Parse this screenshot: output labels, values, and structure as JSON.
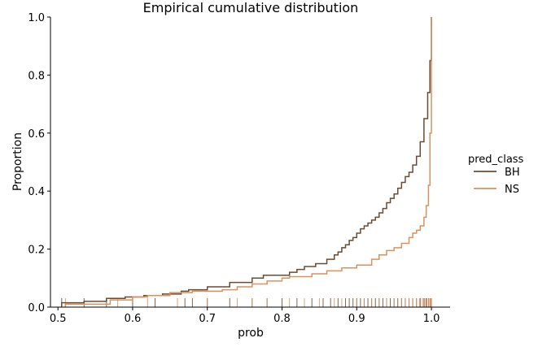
{
  "chart_data": {
    "type": "line",
    "title": "Empirical cumulative distribution",
    "xlabel": "prob",
    "ylabel": "Proportion",
    "xlim": [
      0.49,
      1.025
    ],
    "ylim": [
      0,
      1.0
    ],
    "xticks": [
      0.5,
      0.6,
      0.7,
      0.8,
      0.9,
      1.0
    ],
    "xtick_labels": [
      "0.5",
      "0.6",
      "0.7",
      "0.8",
      "0.9",
      "1.0"
    ],
    "yticks": [
      0.0,
      0.2,
      0.4,
      0.6,
      0.8,
      1.0
    ],
    "ytick_labels": [
      "0.0",
      "0.2",
      "0.4",
      "0.6",
      "0.8",
      "1.0"
    ],
    "grid": false,
    "legend": {
      "title": "pred_class",
      "placement": "center-right"
    },
    "series": [
      {
        "name": "BH",
        "color": "#6b4b32",
        "x": [
          0.505,
          0.535,
          0.565,
          0.59,
          0.615,
          0.64,
          0.665,
          0.675,
          0.7,
          0.73,
          0.76,
          0.775,
          0.8,
          0.81,
          0.82,
          0.83,
          0.845,
          0.86,
          0.87,
          0.875,
          0.88,
          0.885,
          0.89,
          0.895,
          0.9,
          0.905,
          0.91,
          0.915,
          0.92,
          0.925,
          0.93,
          0.935,
          0.94,
          0.945,
          0.95,
          0.955,
          0.96,
          0.965,
          0.97,
          0.975,
          0.98,
          0.985,
          0.99,
          0.995,
          0.998,
          1.0
        ],
        "y": [
          0.015,
          0.02,
          0.03,
          0.035,
          0.04,
          0.045,
          0.055,
          0.06,
          0.07,
          0.085,
          0.1,
          0.11,
          0.11,
          0.12,
          0.13,
          0.14,
          0.15,
          0.165,
          0.18,
          0.19,
          0.205,
          0.215,
          0.23,
          0.24,
          0.255,
          0.27,
          0.28,
          0.29,
          0.3,
          0.31,
          0.325,
          0.34,
          0.36,
          0.375,
          0.39,
          0.41,
          0.43,
          0.45,
          0.465,
          0.49,
          0.52,
          0.57,
          0.65,
          0.74,
          0.85,
          1.0
        ]
      },
      {
        "name": "NS",
        "color": "#d9925e",
        "x": [
          0.51,
          0.57,
          0.6,
          0.62,
          0.65,
          0.68,
          0.72,
          0.74,
          0.76,
          0.78,
          0.8,
          0.81,
          0.84,
          0.86,
          0.88,
          0.9,
          0.92,
          0.93,
          0.94,
          0.95,
          0.96,
          0.97,
          0.975,
          0.98,
          0.985,
          0.99,
          0.993,
          0.996,
          0.998,
          1.0
        ],
        "y": [
          0.01,
          0.025,
          0.035,
          0.04,
          0.05,
          0.055,
          0.06,
          0.07,
          0.08,
          0.09,
          0.1,
          0.105,
          0.115,
          0.125,
          0.135,
          0.145,
          0.165,
          0.18,
          0.195,
          0.205,
          0.22,
          0.24,
          0.255,
          0.265,
          0.28,
          0.31,
          0.35,
          0.42,
          0.6,
          1.0
        ]
      }
    ],
    "rug": {
      "BH": [
        0.505,
        0.535,
        0.565,
        0.6,
        0.63,
        0.67,
        0.68,
        0.7,
        0.73,
        0.76,
        0.78,
        0.8,
        0.82,
        0.84,
        0.855,
        0.865,
        0.875,
        0.885,
        0.89,
        0.895,
        0.9,
        0.905,
        0.91,
        0.915,
        0.92,
        0.925,
        0.93,
        0.935,
        0.94,
        0.945,
        0.95,
        0.955,
        0.96,
        0.965,
        0.97,
        0.975,
        0.98,
        0.985,
        0.99,
        0.993,
        0.996,
        0.998,
        1.0
      ],
      "NS": [
        0.51,
        0.58,
        0.62,
        0.66,
        0.7,
        0.74,
        0.76,
        0.78,
        0.81,
        0.83,
        0.85,
        0.87,
        0.88,
        0.9,
        0.91,
        0.92,
        0.93,
        0.94,
        0.95,
        0.96,
        0.965,
        0.97,
        0.975,
        0.98,
        0.984,
        0.988,
        0.991,
        0.994,
        0.996,
        0.998,
        0.999,
        1.0
      ]
    }
  }
}
